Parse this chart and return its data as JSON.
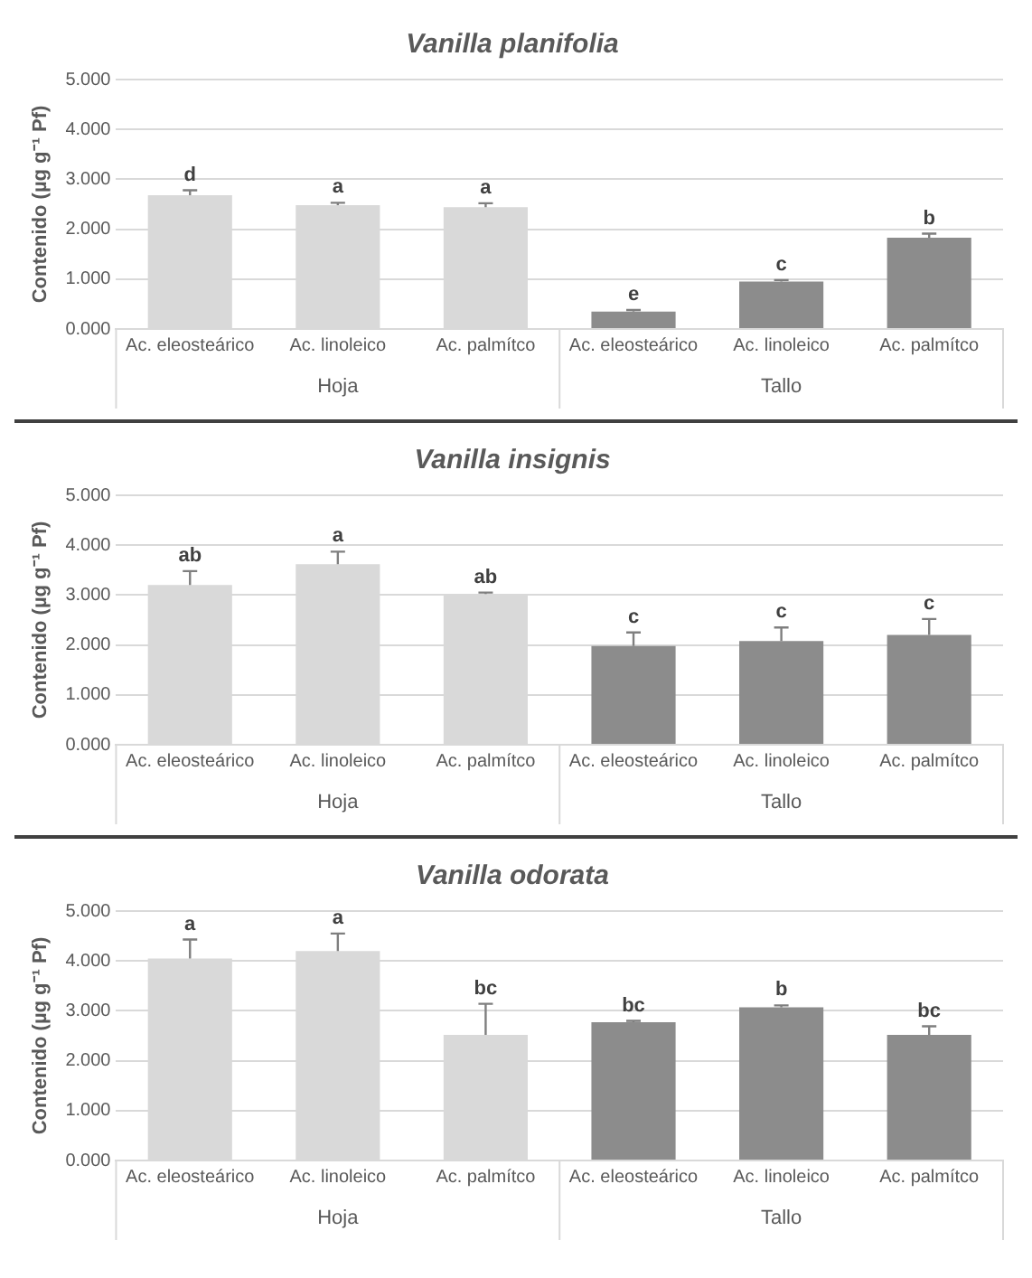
{
  "chart_data": [
    {
      "type": "bar",
      "title": "Vanilla planifolia",
      "ylabel": "Contenido (µg g⁻¹ Pf)",
      "categories": [
        "Ac. eleosteárico",
        "Ac. linoleico",
        "Ac. palmítco",
        "Ac. eleosteárico",
        "Ac. linoleico",
        "Ac. palmítco"
      ],
      "values": [
        2.68,
        2.48,
        2.44,
        0.35,
        0.95,
        1.83
      ],
      "errors": [
        0.1,
        0.05,
        0.08,
        0.03,
        0.03,
        0.08
      ],
      "value_labels": [
        "d",
        "a",
        "a",
        "e",
        "c",
        "b"
      ],
      "colors": [
        "#d9d9d9",
        "#d9d9d9",
        "#d9d9d9",
        "#8c8c8c",
        "#8c8c8c",
        "#8c8c8c"
      ],
      "ylim": [
        0,
        5
      ],
      "yticks": [
        {
          "value": 0,
          "label": "0.000"
        },
        {
          "value": 1,
          "label": "1.000"
        },
        {
          "value": 2,
          "label": "2.000"
        },
        {
          "value": 3,
          "label": "3.000"
        },
        {
          "value": 4,
          "label": "4.000"
        },
        {
          "value": 5,
          "label": "5.000"
        }
      ],
      "grid": "y",
      "annotations": [
        "Hoja",
        "Tallo"
      ]
    },
    {
      "type": "bar",
      "title": "Vanilla insignis",
      "ylabel": "Contenido (µg g⁻¹ Pf)",
      "categories": [
        "Ac. eleosteárico",
        "Ac. linoleico",
        "Ac. palmítco",
        "Ac. eleosteárico",
        "Ac. linoleico",
        "Ac. palmítco"
      ],
      "values": [
        3.2,
        3.62,
        3.02,
        1.98,
        2.08,
        2.2
      ],
      "errors": [
        0.28,
        0.25,
        0.03,
        0.27,
        0.27,
        0.32
      ],
      "value_labels": [
        "ab",
        "a",
        "ab",
        "c",
        "c",
        "c"
      ],
      "colors": [
        "#d9d9d9",
        "#d9d9d9",
        "#d9d9d9",
        "#8c8c8c",
        "#8c8c8c",
        "#8c8c8c"
      ],
      "ylim": [
        0,
        5
      ],
      "yticks": [
        {
          "value": 0,
          "label": "0.000"
        },
        {
          "value": 1,
          "label": "1.000"
        },
        {
          "value": 2,
          "label": "2.000"
        },
        {
          "value": 3,
          "label": "3.000"
        },
        {
          "value": 4,
          "label": "4.000"
        },
        {
          "value": 5,
          "label": "5.000"
        }
      ],
      "grid": "y",
      "annotations": [
        "Hoja",
        "Tallo"
      ]
    },
    {
      "type": "bar",
      "title": "Vanilla odorata",
      "ylabel": "Contenido (µg g⁻¹ Pf)",
      "categories": [
        "Ac. eleosteárico",
        "Ac. linoleico",
        "Ac. palmítco",
        "Ac. eleosteárico",
        "Ac. linoleico",
        "Ac. palmítco"
      ],
      "values": [
        4.05,
        4.2,
        2.52,
        2.77,
        3.07,
        2.52
      ],
      "errors": [
        0.38,
        0.35,
        0.62,
        0.03,
        0.04,
        0.17
      ],
      "value_labels": [
        "a",
        "a",
        "bc",
        "bc",
        "b",
        "bc"
      ],
      "colors": [
        "#d9d9d9",
        "#d9d9d9",
        "#d9d9d9",
        "#8c8c8c",
        "#8c8c8c",
        "#8c8c8c"
      ],
      "ylim": [
        0,
        5
      ],
      "yticks": [
        {
          "value": 0,
          "label": "0.000"
        },
        {
          "value": 1,
          "label": "1.000"
        },
        {
          "value": 2,
          "label": "2.000"
        },
        {
          "value": 3,
          "label": "3.000"
        },
        {
          "value": 4,
          "label": "4.000"
        },
        {
          "value": 5,
          "label": "5.000"
        }
      ],
      "grid": "y",
      "annotations": [
        "Hoja",
        "Tallo"
      ]
    }
  ]
}
